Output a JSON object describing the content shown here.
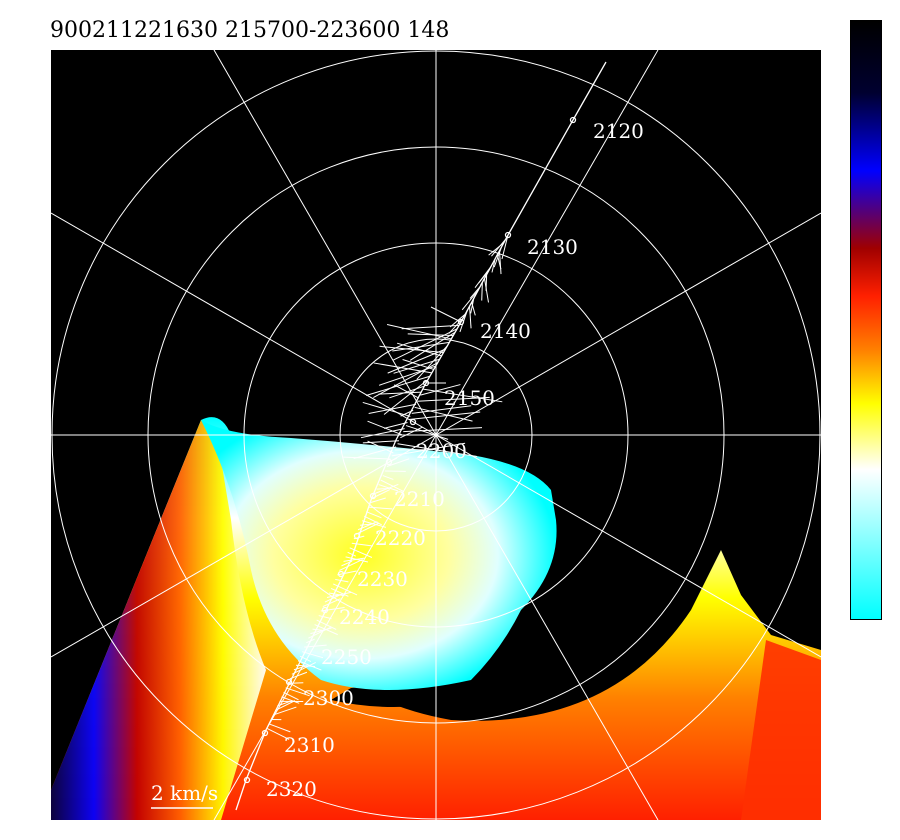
{
  "header": {
    "title": "900211221630 215700-223600 148"
  },
  "scale_bar": {
    "label": "2 km/s"
  },
  "trajectory": {
    "time_labels": [
      "2120",
      "2130",
      "2140",
      "2150",
      "2200",
      "2210",
      "2220",
      "2230",
      "2240",
      "2250",
      "2300",
      "2310",
      "2320"
    ]
  },
  "colors": {
    "background": "#000000",
    "grid": "#ffffff",
    "colorbar_stops": [
      "#000000",
      "#000030",
      "#0000ff",
      "#a00000",
      "#ff2000",
      "#ff8000",
      "#ffff00",
      "#ffffff",
      "#00ffff"
    ]
  }
}
